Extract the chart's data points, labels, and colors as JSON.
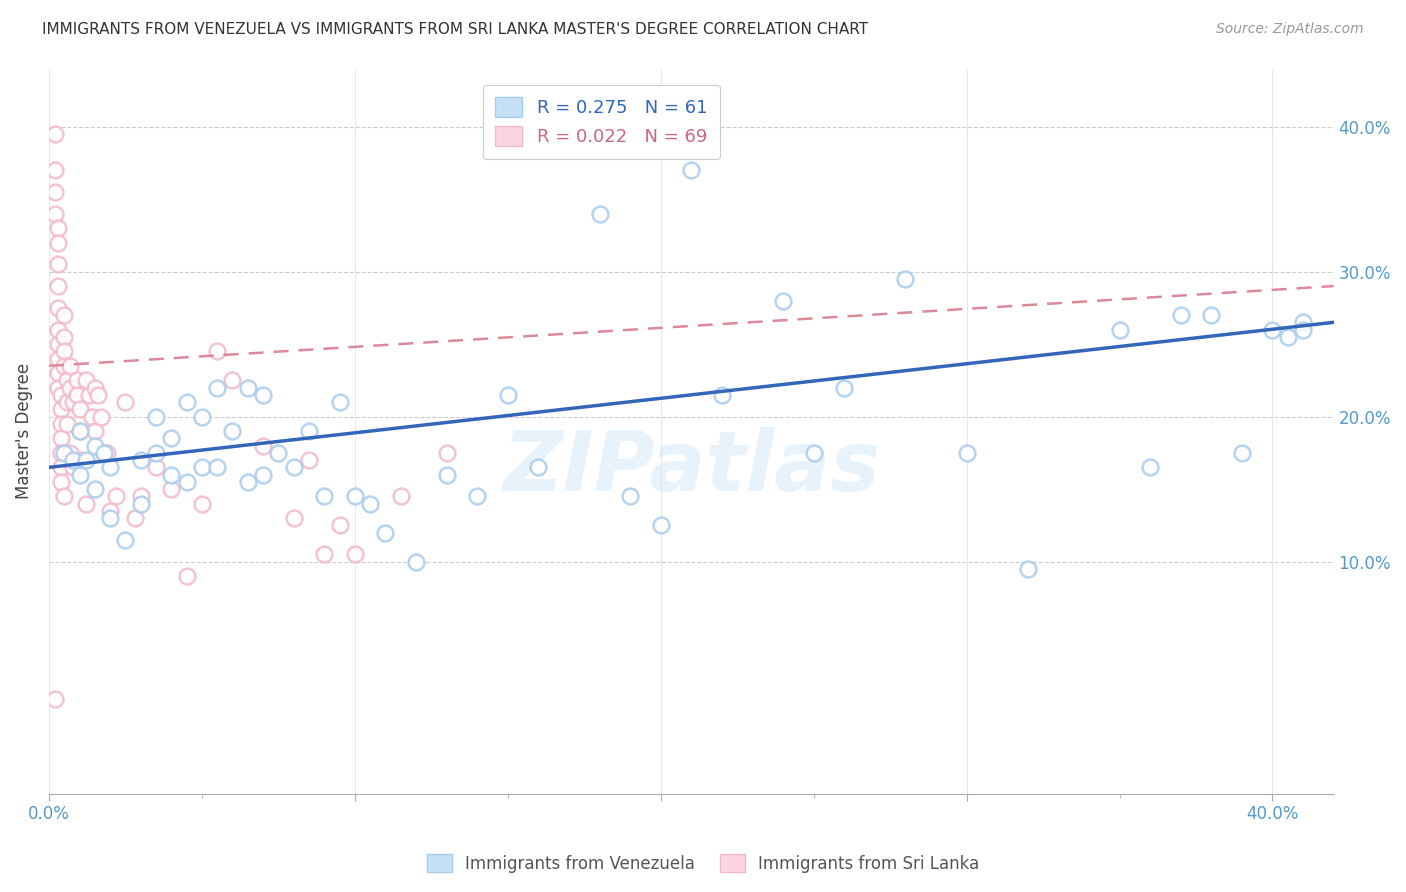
{
  "title": "IMMIGRANTS FROM VENEZUELA VS IMMIGRANTS FROM SRI LANKA MASTER'S DEGREE CORRELATION CHART",
  "source": "Source: ZipAtlas.com",
  "ylabel": "Master's Degree",
  "xlim": [
    0.0,
    0.42
  ],
  "ylim": [
    -0.06,
    0.44
  ],
  "watermark": "ZIPatlas",
  "venezuela_color": "#a8ccee",
  "srilanka_color": "#f4b8cc",
  "venezuela_line_color": "#3366bb",
  "srilanka_line_color": "#dd8899",
  "venezuela_points_x": [
    0.005,
    0.008,
    0.01,
    0.01,
    0.012,
    0.015,
    0.015,
    0.018,
    0.02,
    0.02,
    0.025,
    0.03,
    0.03,
    0.035,
    0.035,
    0.04,
    0.04,
    0.045,
    0.045,
    0.05,
    0.05,
    0.055,
    0.055,
    0.06,
    0.065,
    0.065,
    0.07,
    0.07,
    0.075,
    0.08,
    0.085,
    0.09,
    0.095,
    0.1,
    0.105,
    0.11,
    0.12,
    0.13,
    0.14,
    0.15,
    0.16,
    0.18,
    0.19,
    0.2,
    0.21,
    0.22,
    0.24,
    0.25,
    0.26,
    0.28,
    0.3,
    0.32,
    0.35,
    0.36,
    0.37,
    0.38,
    0.39,
    0.4,
    0.405,
    0.41,
    0.41
  ],
  "venezuela_points_y": [
    0.175,
    0.17,
    0.16,
    0.19,
    0.17,
    0.15,
    0.18,
    0.175,
    0.165,
    0.13,
    0.115,
    0.17,
    0.14,
    0.2,
    0.175,
    0.185,
    0.16,
    0.155,
    0.21,
    0.165,
    0.2,
    0.22,
    0.165,
    0.19,
    0.155,
    0.22,
    0.16,
    0.215,
    0.175,
    0.165,
    0.19,
    0.145,
    0.21,
    0.145,
    0.14,
    0.12,
    0.1,
    0.16,
    0.145,
    0.215,
    0.165,
    0.34,
    0.145,
    0.125,
    0.37,
    0.215,
    0.28,
    0.175,
    0.22,
    0.295,
    0.175,
    0.095,
    0.26,
    0.165,
    0.27,
    0.27,
    0.175,
    0.26,
    0.255,
    0.265,
    0.26
  ],
  "srilanka_points_x": [
    0.002,
    0.002,
    0.002,
    0.002,
    0.002,
    0.003,
    0.003,
    0.003,
    0.003,
    0.003,
    0.003,
    0.003,
    0.003,
    0.003,
    0.003,
    0.004,
    0.004,
    0.004,
    0.004,
    0.004,
    0.004,
    0.004,
    0.005,
    0.005,
    0.005,
    0.005,
    0.005,
    0.006,
    0.006,
    0.006,
    0.007,
    0.007,
    0.007,
    0.008,
    0.008,
    0.009,
    0.009,
    0.01,
    0.01,
    0.01,
    0.012,
    0.012,
    0.013,
    0.014,
    0.015,
    0.015,
    0.016,
    0.017,
    0.018,
    0.019,
    0.02,
    0.022,
    0.025,
    0.028,
    0.03,
    0.035,
    0.04,
    0.045,
    0.05,
    0.055,
    0.06,
    0.07,
    0.08,
    0.085,
    0.09,
    0.095,
    0.1,
    0.115,
    0.13
  ],
  "srilanka_points_y": [
    0.395,
    0.37,
    0.355,
    0.34,
    0.005,
    0.33,
    0.32,
    0.305,
    0.29,
    0.275,
    0.26,
    0.25,
    0.24,
    0.23,
    0.22,
    0.215,
    0.205,
    0.195,
    0.185,
    0.175,
    0.165,
    0.155,
    0.27,
    0.255,
    0.245,
    0.235,
    0.145,
    0.225,
    0.21,
    0.195,
    0.235,
    0.22,
    0.175,
    0.21,
    0.165,
    0.225,
    0.215,
    0.205,
    0.19,
    0.17,
    0.225,
    0.14,
    0.215,
    0.2,
    0.22,
    0.19,
    0.215,
    0.2,
    0.175,
    0.175,
    0.135,
    0.145,
    0.21,
    0.13,
    0.145,
    0.165,
    0.15,
    0.09,
    0.14,
    0.245,
    0.225,
    0.18,
    0.13,
    0.17,
    0.105,
    0.125,
    0.105,
    0.145,
    0.175
  ],
  "venezuela_line_x0": 0.0,
  "venezuela_line_y0": 0.165,
  "venezuela_line_x1": 0.42,
  "venezuela_line_y1": 0.265,
  "srilanka_line_x0": 0.0,
  "srilanka_line_y0": 0.235,
  "srilanka_line_x1": 0.42,
  "srilanka_line_y1": 0.29
}
